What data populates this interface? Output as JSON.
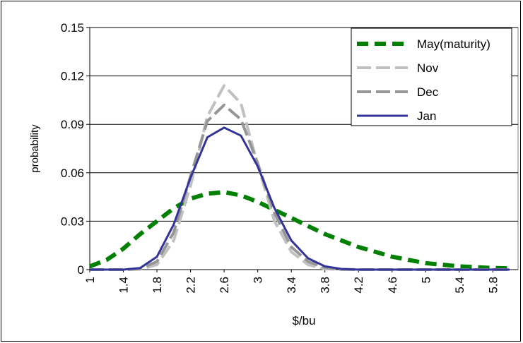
{
  "chart_data": {
    "type": "line",
    "title": "",
    "xlabel": "$/bu",
    "ylabel": "probability",
    "xlim": [
      1,
      6.1
    ],
    "ylim": [
      0,
      0.15
    ],
    "x_tick_labels": [
      "1",
      "1.4",
      "1.8",
      "2.2",
      "2.6",
      "3",
      "3.4",
      "3.8",
      "4.2",
      "4.6",
      "5",
      "5.4",
      "5.8"
    ],
    "y_tick_labels": [
      "0",
      "0.03",
      "0.06",
      "0.09",
      "0.12",
      "0.15"
    ],
    "grid": "horizontal",
    "legend_position": "top-right",
    "x": [
      1.0,
      1.2,
      1.4,
      1.6,
      1.8,
      2.0,
      2.2,
      2.4,
      2.6,
      2.8,
      3.0,
      3.2,
      3.4,
      3.6,
      3.8,
      4.0,
      4.2,
      4.4,
      4.6,
      4.8,
      5.0,
      5.2,
      5.4,
      5.6,
      5.8,
      6.0
    ],
    "series": [
      {
        "name": "May(maturity)",
        "color": "#008000",
        "dash": "long-dash",
        "values": [
          0.002,
          0.006,
          0.013,
          0.022,
          0.03,
          0.038,
          0.044,
          0.047,
          0.048,
          0.046,
          0.042,
          0.037,
          0.032,
          0.027,
          0.022,
          0.018,
          0.014,
          0.011,
          0.008,
          0.006,
          0.004,
          0.003,
          0.002,
          0.0015,
          0.001,
          0.0008
        ]
      },
      {
        "name": "Nov",
        "color": "#c0c0c0",
        "dash": "dash",
        "values": [
          0,
          0,
          0,
          0.0002,
          0.003,
          0.018,
          0.052,
          0.095,
          0.114,
          0.103,
          0.065,
          0.03,
          0.011,
          0.003,
          0.0005,
          0,
          0,
          0,
          0,
          0,
          0,
          0,
          0,
          0,
          0,
          0
        ]
      },
      {
        "name": "Dec",
        "color": "#969696",
        "dash": "dash",
        "values": [
          0,
          0,
          0,
          0.0005,
          0.005,
          0.023,
          0.058,
          0.092,
          0.102,
          0.093,
          0.066,
          0.035,
          0.014,
          0.005,
          0.0012,
          0.0002,
          0,
          0,
          0,
          0,
          0,
          0,
          0,
          0,
          0,
          0
        ]
      },
      {
        "name": "Jan",
        "color": "#333399",
        "dash": "solid",
        "values": [
          0,
          0,
          0,
          0.001,
          0.008,
          0.028,
          0.057,
          0.082,
          0.088,
          0.083,
          0.064,
          0.038,
          0.018,
          0.007,
          0.002,
          0.0004,
          0,
          0,
          0,
          0,
          0,
          0,
          0,
          0,
          0,
          0
        ]
      }
    ]
  }
}
